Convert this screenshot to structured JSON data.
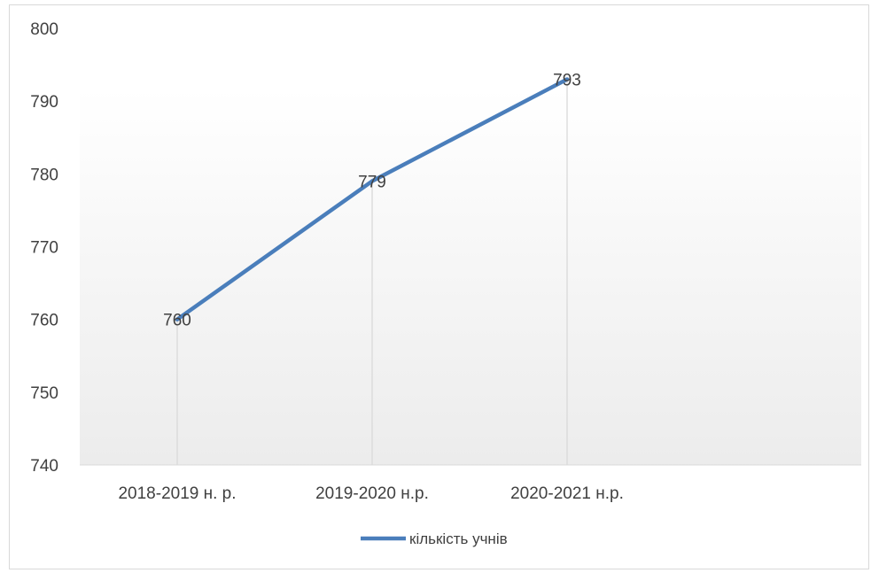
{
  "chart_data": {
    "type": "line",
    "categories": [
      "2018-2019 н. р.",
      "2019-2020 н.р.",
      "2020-2021 н.р."
    ],
    "series": [
      {
        "name": "кількість учнів",
        "values": [
          760,
          779,
          793
        ],
        "color": "#4a7ebb"
      }
    ],
    "ylim": [
      740,
      800
    ],
    "yticks": [
      740,
      750,
      760,
      770,
      780,
      790,
      800
    ],
    "data_labels": true,
    "drop_lines": true,
    "legend_position": "bottom",
    "plot_background": "gradient-white-to-light-gray"
  }
}
